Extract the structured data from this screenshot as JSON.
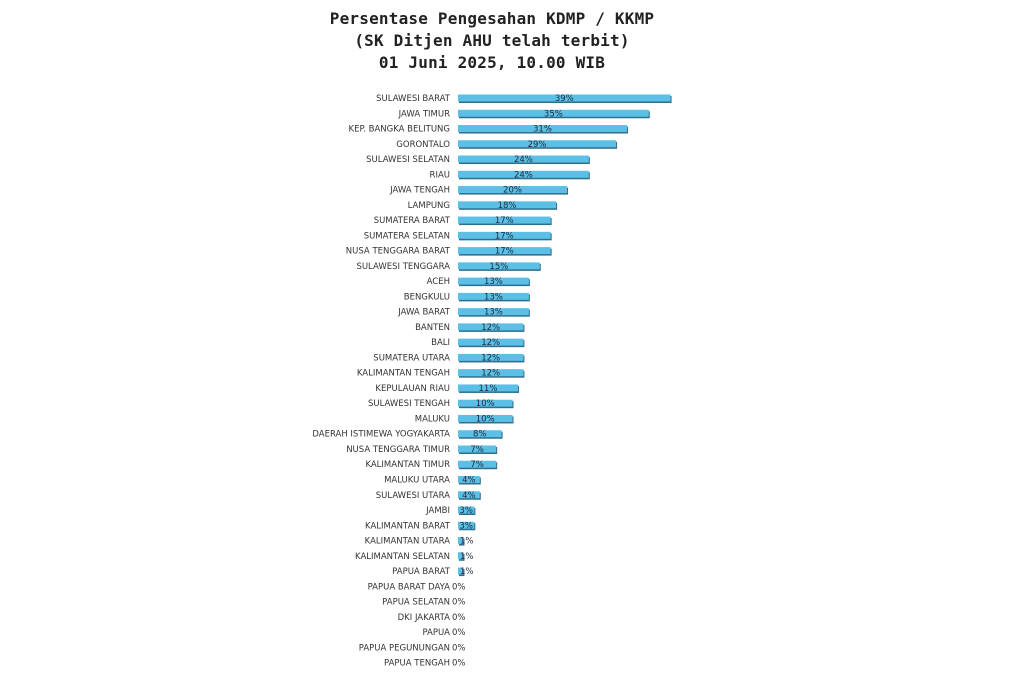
{
  "header": {
    "title_line1": "Persentase Pengesahan KDMP / KKMP",
    "title_line2": "(SK Ditjen AHU telah terbit)",
    "title_line3": "01 Juni 2025, 10.00 WIB"
  },
  "chart_data": {
    "type": "bar",
    "orientation": "horizontal",
    "title": "Persentase Pengesahan KDMP / KKMP",
    "xlabel": "",
    "ylabel": "",
    "xlim": [
      0,
      100
    ],
    "grid": false,
    "value_suffix": "%",
    "bar_color": "#5bbfe6",
    "bar_shadow_color": "#2d6f8c",
    "categories": [
      "SULAWESI BARAT",
      "JAWA TIMUR",
      "KEP. BANGKA BELITUNG",
      "GORONTALO",
      "SULAWESI SELATAN",
      "RIAU",
      "JAWA TENGAH",
      "LAMPUNG",
      "SUMATERA BARAT",
      "SUMATERA SELATAN",
      "NUSA TENGGARA BARAT",
      "SULAWESI TENGGARA",
      "ACEH",
      "BENGKULU",
      "JAWA BARAT",
      "BANTEN",
      "BALI",
      "SUMATERA UTARA",
      "KALIMANTAN TENGAH",
      "KEPULAUAN RIAU",
      "SULAWESI TENGAH",
      "MALUKU",
      "DAERAH ISTIMEWA YOGYAKARTA",
      "NUSA TENGGARA TIMUR",
      "KALIMANTAN TIMUR",
      "MALUKU UTARA",
      "SULAWESI UTARA",
      "JAMBI",
      "KALIMANTAN BARAT",
      "KALIMANTAN UTARA",
      "KALIMANTAN SELATAN",
      "PAPUA BARAT",
      "PAPUA BARAT DAYA",
      "PAPUA SELATAN",
      "DKI JAKARTA",
      "PAPUA",
      "PAPUA PEGUNUNGAN",
      "PAPUA TENGAH"
    ],
    "values": [
      39,
      35,
      31,
      29,
      24,
      24,
      20,
      18,
      17,
      17,
      17,
      15,
      13,
      13,
      13,
      12,
      12,
      12,
      12,
      11,
      10,
      10,
      8,
      7,
      7,
      4,
      4,
      3,
      3,
      1,
      1,
      1,
      0,
      0,
      0,
      0,
      0,
      0
    ],
    "value_labels": [
      "39%",
      "35%",
      "31%",
      "29%",
      "24%",
      "24%",
      "20%",
      "18%",
      "17%",
      "17%",
      "17%",
      "15%",
      "13%",
      "13%",
      "13%",
      "12%",
      "12%",
      "12%",
      "12%",
      "11%",
      "10%",
      "10%",
      "8%",
      "7%",
      "7%",
      "4%",
      "4%",
      "3%",
      "3%",
      "1%",
      "1%",
      "1%",
      "0%",
      "0%",
      "0%",
      "0%",
      "0%",
      "0%"
    ]
  }
}
